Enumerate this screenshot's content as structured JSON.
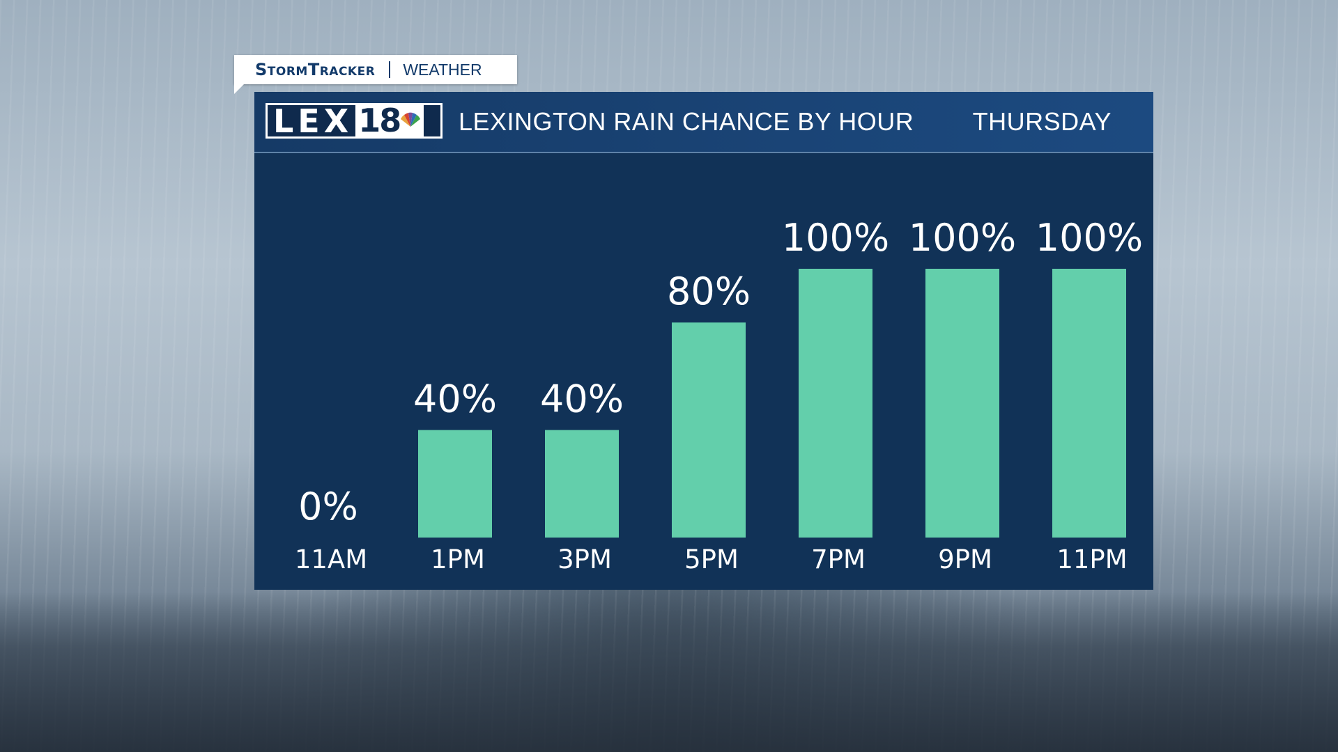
{
  "branding": {
    "tag_brand": "StormTracker",
    "tag_section": "WEATHER",
    "logo_letters": "LEX",
    "logo_number": "18"
  },
  "header": {
    "title": "LEXINGTON RAIN CHANCE BY HOUR",
    "day": "THURSDAY"
  },
  "colors": {
    "bar": "#63cfab",
    "panel": "#113257"
  },
  "chart_data": {
    "type": "bar",
    "title": "LEXINGTON RAIN CHANCE BY HOUR",
    "categories": [
      "11AM",
      "1PM",
      "3PM",
      "5PM",
      "7PM",
      "9PM",
      "11PM"
    ],
    "values": [
      0,
      40,
      40,
      80,
      100,
      100,
      100
    ],
    "value_labels": [
      "0%",
      "40%",
      "40%",
      "80%",
      "100%",
      "100%",
      "100%"
    ],
    "ylim": [
      0,
      100
    ],
    "grid": false,
    "legend": "none"
  }
}
